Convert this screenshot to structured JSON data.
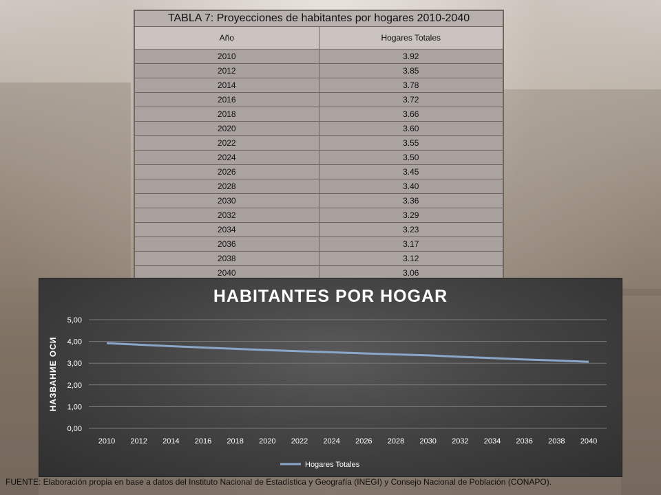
{
  "table": {
    "title": "TABLA 7: Proyecciones de habitantes por hogares 2010-2040",
    "headers": [
      "Año",
      "Hogares Totales"
    ],
    "rows": [
      [
        "2010",
        "3.92"
      ],
      [
        "2012",
        "3.85"
      ],
      [
        "2014",
        "3.78"
      ],
      [
        "2016",
        "3.72"
      ],
      [
        "2018",
        "3.66"
      ],
      [
        "2020",
        "3.60"
      ],
      [
        "2022",
        "3.55"
      ],
      [
        "2024",
        "3.50"
      ],
      [
        "2026",
        "3.45"
      ],
      [
        "2028",
        "3.40"
      ],
      [
        "2030",
        "3.36"
      ],
      [
        "2032",
        "3.29"
      ],
      [
        "2034",
        "3.23"
      ],
      [
        "2036",
        "3.17"
      ],
      [
        "2038",
        "3.12"
      ],
      [
        "2040",
        "3.06"
      ]
    ]
  },
  "chart_data": {
    "type": "line",
    "title": "HABITANTES POR HOGAR",
    "xlabel": "",
    "ylabel": "НАЗВАНИЕ ОСИ",
    "x": [
      "2010",
      "2012",
      "2014",
      "2016",
      "2018",
      "2020",
      "2022",
      "2024",
      "2026",
      "2028",
      "2030",
      "2032",
      "2034",
      "2036",
      "2038",
      "2040"
    ],
    "series": [
      {
        "name": "Hogares Totales",
        "values": [
          3.92,
          3.85,
          3.78,
          3.72,
          3.66,
          3.6,
          3.55,
          3.5,
          3.45,
          3.4,
          3.36,
          3.29,
          3.23,
          3.17,
          3.12,
          3.06
        ]
      }
    ],
    "ylim": [
      0,
      5
    ],
    "yticks": [
      "0,00",
      "1,00",
      "2,00",
      "3,00",
      "4,00",
      "5,00"
    ],
    "grid": true,
    "legend": "bottom",
    "colors": {
      "line": "#8aa6c9",
      "grid": "#7a7a7a",
      "text": "#ffffff"
    }
  },
  "source": "FUENTE: Elaboración propia en base a datos del Instituto Nacional de Estadística y Geografía (INEGI) y Consejo Nacional de Población (CONAPO)."
}
